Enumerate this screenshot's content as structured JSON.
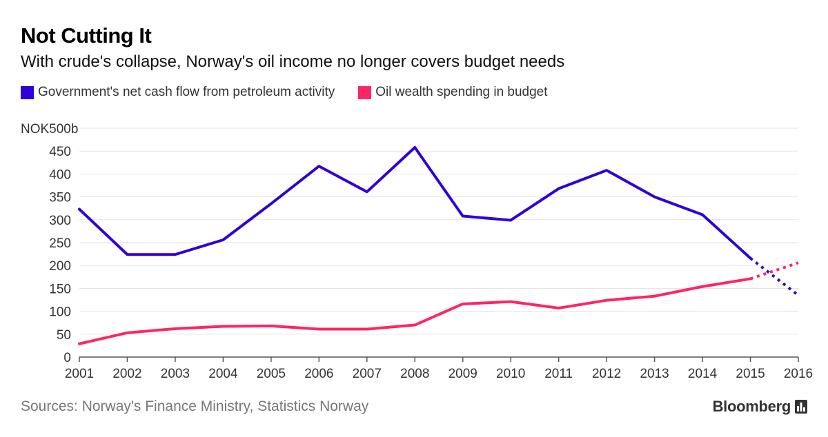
{
  "header": {
    "title": "Not Cutting It",
    "subtitle": "With crude's collapse, Norway's oil income no longer covers budget needs"
  },
  "footer": {
    "source": "Sources: Norway's Finance Ministry, Statistics Norway",
    "brand": "Bloomberg",
    "brand_icon": "bar-chart-icon"
  },
  "chart_data": {
    "type": "line",
    "title": "Not Cutting It",
    "subtitle": "With crude's collapse, Norway's oil income no longer covers budget needs",
    "ylabel": "NOK500b",
    "ylim": [
      0,
      500
    ],
    "yticks": [
      0,
      50,
      100,
      150,
      200,
      250,
      300,
      350,
      400,
      450
    ],
    "ytick_top_label": "NOK500b",
    "x": [
      2001,
      2002,
      2003,
      2004,
      2005,
      2006,
      2007,
      2008,
      2009,
      2010,
      2011,
      2012,
      2013,
      2014,
      2015,
      2016
    ],
    "xlim": [
      2001,
      2016
    ],
    "grid": true,
    "legend_position": "top-left",
    "projection_note_years": [
      2015,
      2016
    ],
    "series": [
      {
        "name": "Government's net cash flow from petroleum activity",
        "color": "#2f00d8",
        "values": [
          323,
          224,
          224,
          256,
          335,
          417,
          361,
          458,
          308,
          299,
          368,
          408,
          350,
          311,
          216,
          135
        ],
        "projected_from_index": 14
      },
      {
        "name": "Oil wealth spending in budget",
        "color": "#ff2466",
        "values": [
          29,
          53,
          62,
          67,
          68,
          61,
          61,
          70,
          116,
          121,
          107,
          124,
          133,
          154,
          171,
          206
        ],
        "projected_from_index": 14
      }
    ]
  }
}
